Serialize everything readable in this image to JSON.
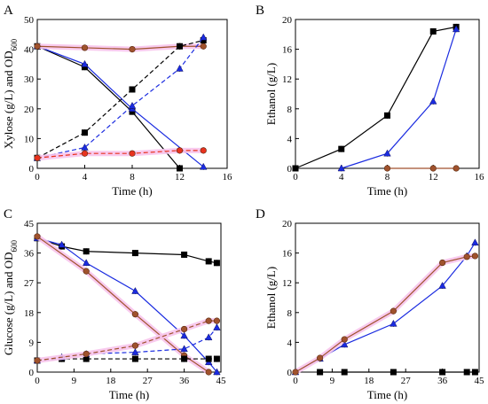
{
  "colors": {
    "black": "#000000",
    "red": "#e8321e",
    "blue": "#1a2be0",
    "brown": "#a0522d",
    "halo": "#f7c4ec",
    "markerEdge": "#5a2a10"
  },
  "chart_data": [
    {
      "type": "line",
      "panel": "A",
      "xlabel": "Time (h)",
      "ylabel_main": "Xylose (g/L) and OD",
      "ylabel_sub": "600",
      "xlim": [
        0,
        16
      ],
      "ylim": [
        0,
        50
      ],
      "xticks": [
        0,
        4,
        8,
        12,
        16
      ],
      "yticks": [
        0,
        10,
        20,
        30,
        40,
        50
      ],
      "grid": false,
      "series": [
        {
          "color": "black",
          "dash": false,
          "marker": "square",
          "halo": false,
          "x": [
            0,
            4,
            8,
            12
          ],
          "y": [
            41,
            34,
            19,
            0
          ]
        },
        {
          "color": "blue",
          "dash": false,
          "marker": "triangle",
          "halo": false,
          "x": [
            0,
            4,
            8,
            14
          ],
          "y": [
            41,
            35,
            20,
            0.5
          ]
        },
        {
          "color": "brown",
          "dash": false,
          "marker": "circle",
          "halo": true,
          "x": [
            0,
            4,
            8,
            12,
            14
          ],
          "y": [
            41,
            40.5,
            40,
            41,
            41
          ]
        },
        {
          "color": "black",
          "dash": true,
          "marker": "square",
          "halo": false,
          "x": [
            0,
            4,
            8,
            12,
            14
          ],
          "y": [
            3.5,
            12,
            26.5,
            41,
            43
          ]
        },
        {
          "color": "blue",
          "dash": true,
          "marker": "triangle",
          "halo": false,
          "x": [
            0,
            4,
            8,
            12,
            14
          ],
          "y": [
            3.5,
            7,
            21,
            33.5,
            44
          ]
        },
        {
          "color": "red",
          "dash": true,
          "marker": "circle",
          "halo": true,
          "x": [
            0,
            4,
            8,
            12,
            14
          ],
          "y": [
            3.5,
            5,
            5,
            6,
            6
          ]
        }
      ]
    },
    {
      "type": "line",
      "panel": "B",
      "xlabel": "Time (h)",
      "ylabel_main": "Ethanol (g/L)",
      "ylabel_sub": "",
      "xlim": [
        0,
        16
      ],
      "ylim": [
        0,
        20
      ],
      "xticks": [
        0,
        4,
        8,
        12,
        16
      ],
      "yticks": [
        0,
        4,
        8,
        12,
        16,
        20
      ],
      "grid": false,
      "series": [
        {
          "color": "black",
          "dash": false,
          "marker": "square",
          "halo": false,
          "x": [
            0,
            4,
            8,
            12,
            14
          ],
          "y": [
            0,
            2.6,
            7.1,
            18.4,
            19
          ]
        },
        {
          "color": "blue",
          "dash": false,
          "marker": "triangle",
          "halo": false,
          "x": [
            4,
            8,
            12,
            14
          ],
          "y": [
            0,
            2,
            9,
            18.7
          ]
        },
        {
          "color": "brown",
          "dash": false,
          "marker": "circle",
          "halo": false,
          "x": [
            8,
            12,
            14
          ],
          "y": [
            0,
            0,
            0
          ]
        }
      ]
    },
    {
      "type": "line",
      "panel": "C",
      "xlabel": "Time (h)",
      "ylabel_main": "Glucose (g/L) and OD",
      "ylabel_sub": "600",
      "xlim": [
        0,
        45
      ],
      "ylim": [
        0,
        45
      ],
      "xticks": [
        0,
        9,
        18,
        27,
        36,
        45
      ],
      "yticks": [
        0,
        9,
        18,
        27,
        36,
        45
      ],
      "grid": false,
      "series": [
        {
          "color": "black",
          "dash": false,
          "marker": "square",
          "halo": false,
          "x": [
            0,
            6,
            12,
            24,
            36,
            42,
            44
          ],
          "y": [
            40.5,
            38,
            36.5,
            36,
            35.5,
            33.5,
            33
          ]
        },
        {
          "color": "blue",
          "dash": false,
          "marker": "triangle",
          "halo": false,
          "x": [
            0,
            6,
            12,
            24,
            36,
            42,
            44
          ],
          "y": [
            40.5,
            38.5,
            33,
            24.5,
            11,
            3,
            0
          ]
        },
        {
          "color": "brown",
          "dash": false,
          "marker": "circle",
          "halo": true,
          "x": [
            0,
            12,
            24,
            36,
            42
          ],
          "y": [
            41,
            30.5,
            17.5,
            5,
            0
          ]
        },
        {
          "color": "black",
          "dash": true,
          "marker": "square",
          "halo": false,
          "x": [
            0,
            6,
            12,
            24,
            36,
            42,
            44
          ],
          "y": [
            3.5,
            4,
            4,
            4,
            4,
            4,
            4
          ]
        },
        {
          "color": "blue",
          "dash": true,
          "marker": "triangle",
          "halo": false,
          "x": [
            0,
            6,
            12,
            24,
            36,
            42,
            44
          ],
          "y": [
            3.5,
            4.5,
            5.5,
            6,
            7,
            10.5,
            13.5
          ]
        },
        {
          "color": "brown",
          "dash": true,
          "marker": "circle",
          "halo": true,
          "x": [
            0,
            12,
            24,
            36,
            42,
            44
          ],
          "y": [
            3.5,
            5.5,
            8,
            13,
            15.5,
            15.5
          ]
        }
      ]
    },
    {
      "type": "line",
      "panel": "D",
      "xlabel": "Time (h)",
      "ylabel_main": "Ethanol (g/L)",
      "ylabel_sub": "",
      "xlim": [
        0,
        45
      ],
      "ylim": [
        0,
        20
      ],
      "xticks": [
        0,
        9,
        18,
        27,
        36,
        45
      ],
      "yticks": [
        0,
        4,
        8,
        12,
        16,
        20
      ],
      "grid": false,
      "series": [
        {
          "color": "black",
          "dash": false,
          "marker": "square",
          "halo": false,
          "x": [
            6,
            12,
            24,
            36,
            42,
            44
          ],
          "y": [
            0,
            0,
            0,
            0,
            0,
            0
          ]
        },
        {
          "color": "blue",
          "dash": false,
          "marker": "triangle",
          "halo": false,
          "x": [
            0,
            6,
            12,
            24,
            36,
            42,
            44
          ],
          "y": [
            0,
            1.8,
            3.7,
            6.5,
            11.6,
            15.6,
            17.4
          ]
        },
        {
          "color": "brown",
          "dash": false,
          "marker": "circle",
          "halo": true,
          "x": [
            0,
            6,
            12,
            24,
            36,
            42,
            44
          ],
          "y": [
            0,
            1.9,
            4.4,
            8.2,
            14.7,
            15.5,
            15.6
          ]
        }
      ]
    }
  ]
}
